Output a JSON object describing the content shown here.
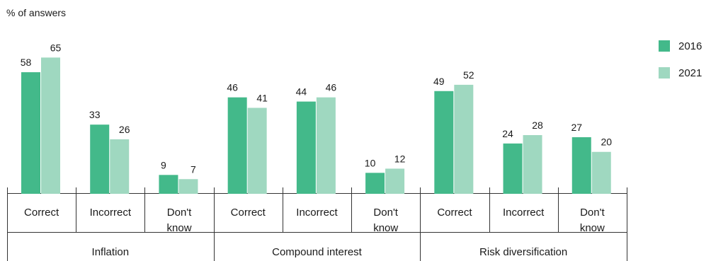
{
  "chart_data": {
    "type": "bar",
    "ylabel": "% of answers",
    "ylim": [
      0,
      70
    ],
    "grid": false,
    "legend_position": "top-right",
    "groups": [
      {
        "label": "Inflation",
        "categories": [
          "Correct",
          "Incorrect",
          "Don't know"
        ]
      },
      {
        "label": "Compound interest",
        "categories": [
          "Correct",
          "Incorrect",
          "Don't know"
        ]
      },
      {
        "label": "Risk diversification",
        "categories": [
          "Correct",
          "Incorrect",
          "Don't know"
        ]
      }
    ],
    "categories": [
      "Correct",
      "Incorrect",
      "Don't know",
      "Correct",
      "Incorrect",
      "Don't know",
      "Correct",
      "Incorrect",
      "Don't know"
    ],
    "series": [
      {
        "name": "2016",
        "color": "#43b98a",
        "values": [
          58,
          33,
          9,
          46,
          44,
          10,
          49,
          24,
          27
        ]
      },
      {
        "name": "2021",
        "color": "#9fd8c0",
        "values": [
          65,
          26,
          7,
          41,
          46,
          12,
          52,
          28,
          20
        ]
      }
    ]
  }
}
